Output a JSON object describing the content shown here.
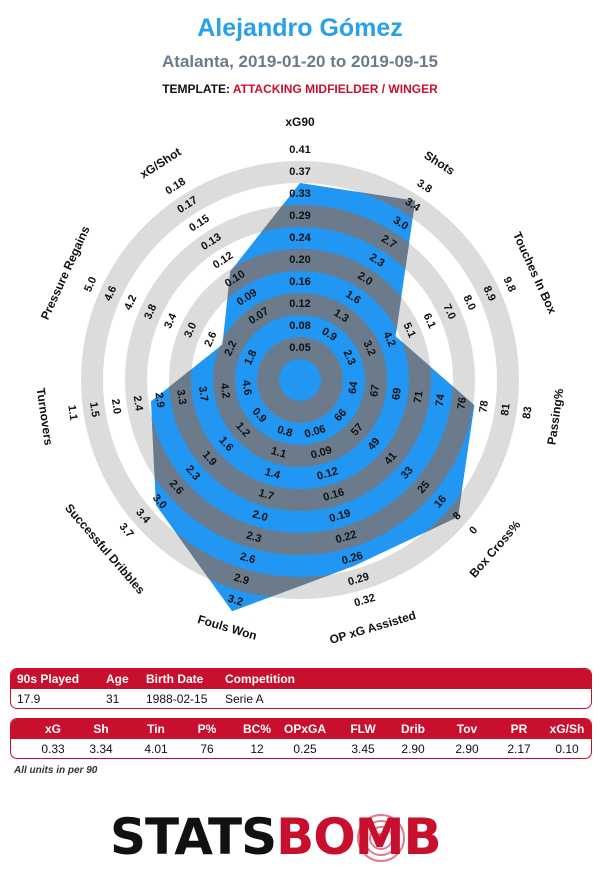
{
  "header": {
    "title": "Alejandro Gómez",
    "subtitle": "Atalanta, 2019-01-20 to 2019-09-15",
    "template_label": "TEMPLATE:",
    "template_value": "ATTACKING MIDFIELDER / WINGER"
  },
  "chart_data": {
    "type": "radar",
    "rings": 10,
    "fill_color": "#2196f3",
    "overlap_color": "#6b7b8c",
    "axes": [
      {
        "name": "xG90",
        "ticks": [
          "0.05",
          "0.08",
          "0.12",
          "0.16",
          "0.20",
          "0.24",
          "0.29",
          "0.33",
          "0.37",
          "0.41"
        ],
        "value": 0.33,
        "tick_min": 0.05,
        "tick_max": 0.41
      },
      {
        "name": "Shots",
        "ticks": [
          "0.9",
          "1.3",
          "1.6",
          "2.0",
          "2.3",
          "2.7",
          "3.0",
          "3.4",
          "3.8"
        ],
        "value": 3.34,
        "tick_min": 0.9,
        "tick_max": 3.8
      },
      {
        "name": "Touches In Box",
        "ticks": [
          "2.3",
          "3.2",
          "4.2",
          "5.1",
          "6.1",
          "7.0",
          "8.0",
          "8.9",
          "9.8"
        ],
        "value": 4.01,
        "tick_min": 2.3,
        "tick_max": 9.8
      },
      {
        "name": "Passing%",
        "ticks": [
          "64",
          "67",
          "69",
          "71",
          "74",
          "76",
          "78",
          "81",
          "83"
        ],
        "value": 76,
        "tick_min": 64,
        "tick_max": 83
      },
      {
        "name": "Box Cross%",
        "ticks": [
          "66",
          "57",
          "49",
          "41",
          "33",
          "25",
          "16",
          "8",
          "0"
        ],
        "value": 12,
        "tick_min": 66,
        "tick_max": 0
      },
      {
        "name": "OP xG Assisted",
        "ticks": [
          "0.06",
          "0.09",
          "0.12",
          "0.16",
          "0.19",
          "0.22",
          "0.26",
          "0.29",
          "0.32"
        ],
        "value": 0.25,
        "tick_min": 0.06,
        "tick_max": 0.32
      },
      {
        "name": "Fouls Won",
        "ticks": [
          "0.8",
          "1.1",
          "1.4",
          "1.7",
          "2.0",
          "2.3",
          "2.6",
          "2.9",
          "3.2"
        ],
        "value": 3.45,
        "tick_min": 0.8,
        "tick_max": 3.2
      },
      {
        "name": "Successful Dribbles",
        "ticks": [
          "0.9",
          "1.2",
          "1.6",
          "1.9",
          "2.3",
          "2.6",
          "3.0",
          "3.4",
          "3.7"
        ],
        "value": 2.9,
        "tick_min": 0.9,
        "tick_max": 3.7
      },
      {
        "name": "Turnovers",
        "ticks": [
          "4.6",
          "4.2",
          "3.7",
          "3.3",
          "2.9",
          "2.4",
          "2.0",
          "1.5",
          "1.1"
        ],
        "value": 2.9,
        "tick_min": 4.6,
        "tick_max": 1.1
      },
      {
        "name": "Pressure Regains",
        "ticks": [
          "1.8",
          "2.2",
          "2.6",
          "3.0",
          "3.4",
          "3.8",
          "4.2",
          "4.6",
          "5.0"
        ],
        "value": 2.17,
        "tick_min": 1.8,
        "tick_max": 5.0
      },
      {
        "name": "xG/Shot",
        "ticks": [
          "0.07",
          "0.09",
          "0.10",
          "0.12",
          "0.13",
          "0.15",
          "0.17",
          "0.18"
        ],
        "value": 0.1,
        "tick_min": 0.07,
        "tick_max": 0.18
      }
    ]
  },
  "info_table": {
    "headers": [
      "90s Played",
      "Age",
      "Birth Date",
      "Competition"
    ],
    "values": [
      "17.9",
      "31",
      "1988-02-15",
      "Serie A"
    ]
  },
  "stats_table": {
    "headers": [
      "xG",
      "Sh",
      "Tin",
      "P%",
      "BC%",
      "OPxGA",
      "FLW",
      "Drib",
      "Tov",
      "PR",
      "xG/Sh"
    ],
    "values": [
      "0.33",
      "3.34",
      "4.01",
      "76",
      "12",
      "0.25",
      "3.45",
      "2.90",
      "2.90",
      "2.17",
      "0.10"
    ]
  },
  "footnote": "All units in per 90",
  "logo": {
    "part1": "STATS",
    "part2": "BOMB",
    "color": "#c8102e"
  }
}
